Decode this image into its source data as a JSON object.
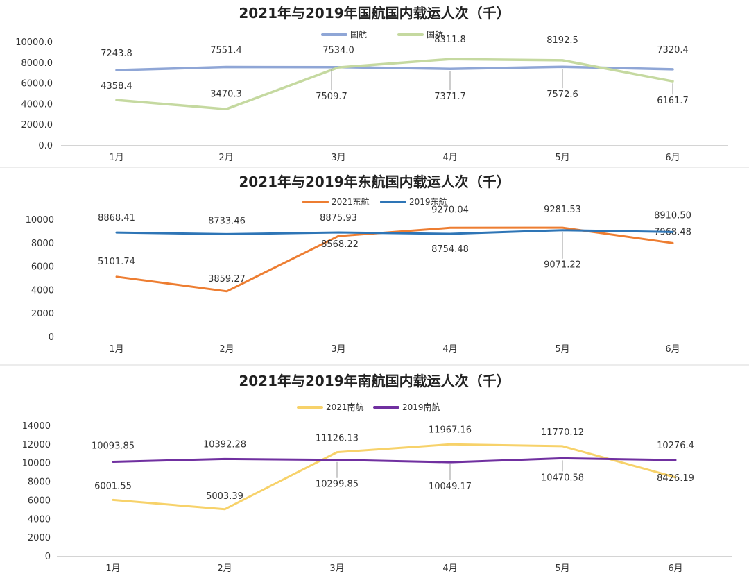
{
  "chart_data": [
    {
      "type": "line",
      "title": "2021年与2019年国航国内载运人次（千）",
      "categories": [
        "1月",
        "2月",
        "3月",
        "4月",
        "5月",
        "6月"
      ],
      "y_ticks": [
        "0.0",
        "2000.0",
        "4000.0",
        "6000.0",
        "8000.0",
        "10000.0"
      ],
      "ylim": [
        0,
        10000
      ],
      "legend_position": "top-right",
      "series": [
        {
          "name": "国航",
          "color": "#8fa6d6",
          "values": [
            7243.8,
            7551.4,
            7534.0,
            7371.7,
            7572.6,
            7320.4
          ],
          "labels": [
            "7243.8",
            "7551.4",
            "7534.0",
            "7371.7",
            "7572.6",
            "7320.4"
          ]
        },
        {
          "name": "国航",
          "color": "#c5d9a0",
          "values": [
            4358.4,
            3470.3,
            7509.7,
            8311.8,
            8192.5,
            6161.7
          ],
          "labels": [
            "4358.4",
            "3470.3",
            "7509.7",
            "8311.8",
            "8192.5",
            "6161.7"
          ]
        }
      ]
    },
    {
      "type": "line",
      "title": "2021年与2019年东航国内载运人次（千）",
      "categories": [
        "1月",
        "2月",
        "3月",
        "4月",
        "5月",
        "6月"
      ],
      "y_ticks": [
        "0",
        "2000",
        "4000",
        "6000",
        "8000",
        "10000"
      ],
      "ylim": [
        0,
        10000
      ],
      "legend_position": "top-center",
      "series": [
        {
          "name": "2021东航",
          "color": "#ed7d31",
          "values": [
            5101.74,
            3859.27,
            8568.22,
            9270.04,
            9281.53,
            7968.48
          ],
          "labels": [
            "5101.74",
            "3859.27",
            "8568.22",
            "9270.04",
            "9281.53",
            "7968.48"
          ]
        },
        {
          "name": "2019东航",
          "color": "#2e75b6",
          "values": [
            8868.41,
            8733.46,
            8875.93,
            8754.48,
            9071.22,
            8910.5
          ],
          "labels": [
            "8868.41",
            "8733.46",
            "8875.93",
            "8754.48",
            "9071.22",
            "8910.50"
          ]
        }
      ]
    },
    {
      "type": "line",
      "title": "2021年与2019年南航国内载运人次（千）",
      "categories": [
        "1月",
        "2月",
        "3月",
        "4月",
        "5月",
        "6月"
      ],
      "y_ticks": [
        "0",
        "2000",
        "4000",
        "6000",
        "8000",
        "10000",
        "12000",
        "14000"
      ],
      "ylim": [
        0,
        14000
      ],
      "legend_position": "top-center",
      "series": [
        {
          "name": "2021南航",
          "color": "#f7d26a",
          "values": [
            6001.55,
            5003.39,
            11126.13,
            11967.16,
            11770.12,
            8426.19
          ],
          "labels": [
            "6001.55",
            "5003.39",
            "11126.13",
            "11967.16",
            "11770.12",
            "8426.19"
          ]
        },
        {
          "name": "2019南航",
          "color": "#7030a0",
          "values": [
            10093.85,
            10392.28,
            10299.85,
            10049.17,
            10470.58,
            10276.4
          ],
          "labels": [
            "10093.85",
            "10392.28",
            "10299.85",
            "10049.17",
            "10470.58",
            "10276.4"
          ]
        }
      ]
    }
  ]
}
